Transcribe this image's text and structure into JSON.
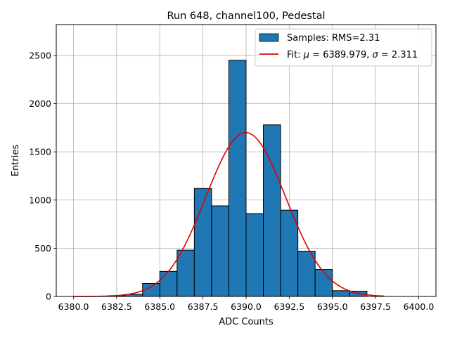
{
  "chart_data": {
    "type": "bar",
    "title": "Run 648, channel100, Pedestal",
    "xlabel": "ADC Counts",
    "ylabel": "Entries",
    "xlim": [
      6379.0,
      6401.0
    ],
    "ylim": [
      0,
      2820
    ],
    "xticks": [
      6380.0,
      6382.5,
      6385.0,
      6387.5,
      6390.0,
      6392.5,
      6395.0,
      6397.5,
      6400.0
    ],
    "xtick_labels": [
      "6380.0",
      "6382.5",
      "6385.0",
      "6387.5",
      "6390.0",
      "6392.5",
      "6395.0",
      "6397.5",
      "6400.0"
    ],
    "yticks": [
      0,
      500,
      1000,
      1500,
      2000,
      2500
    ],
    "ytick_labels": [
      "0",
      "500",
      "1000",
      "1500",
      "2000",
      "2500"
    ],
    "grid": true,
    "legend_position": "top-right",
    "histogram": {
      "name": "Samples: RMS=2.31",
      "color": "#1f77b4",
      "edge_color": "#000000",
      "bin_width": 1,
      "bin_left_edges": [
        6381,
        6382,
        6383,
        6384,
        6385,
        6386,
        6387,
        6388,
        6389,
        6390,
        6391,
        6392,
        6393,
        6394,
        6395,
        6396
      ],
      "values": [
        3,
        8,
        22,
        135,
        260,
        480,
        1120,
        940,
        2450,
        860,
        1780,
        895,
        470,
        280,
        60,
        55
      ]
    },
    "fit": {
      "name_prefix": "Fit: ",
      "name_mu_symbol": "μ",
      "name_mid": " = 6389.979, ",
      "name_sigma_symbol": "σ",
      "name_end": " = 2.311",
      "color": "#e00000",
      "mu": 6389.979,
      "sigma": 2.311,
      "amplitude": 1700,
      "x_range": [
        6380.0,
        6398.0
      ]
    }
  }
}
